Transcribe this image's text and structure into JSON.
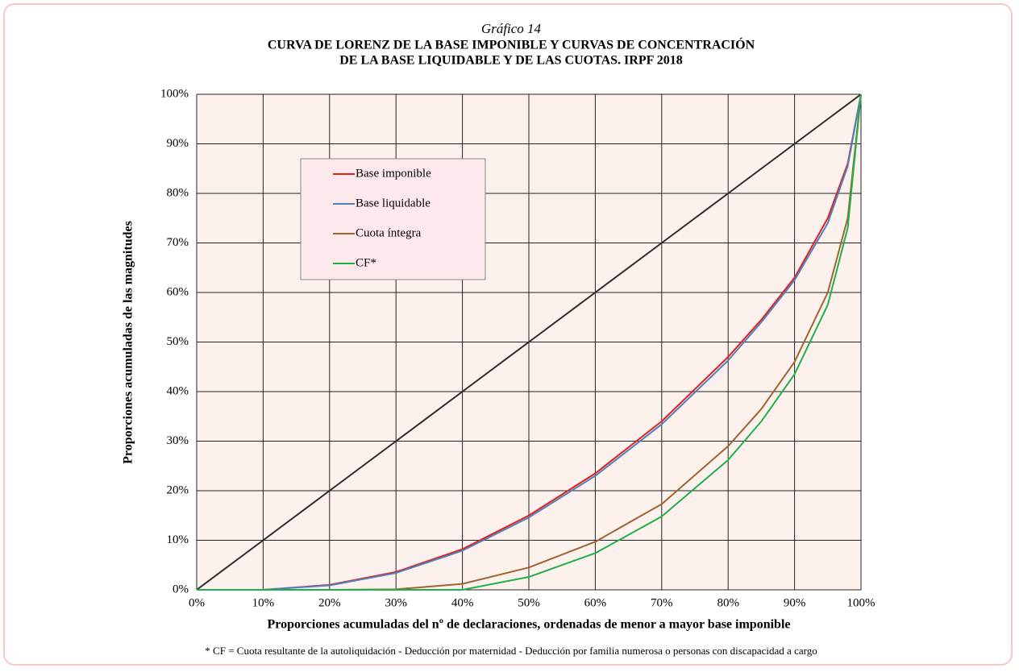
{
  "chart_data": {
    "type": "line",
    "subtitle": "Gráfico 14",
    "title": [
      "CURVA DE LORENZ DE LA BASE IMPONIBLE Y CURVAS DE CONCENTRACIÓN",
      "DE LA BASE LIQUIDABLE Y DE LAS CUOTAS.  IRPF 2018"
    ],
    "xlabel": "Proporciones acumuladas del nº de declaraciones, ordenadas de menor a mayor base imponible",
    "ylabel": "Proporciones acumuladas de las magnitudes",
    "footnote": "* CF = Cuota resultante de la autoliquidación - Deducción por maternidad - Deducción por familia numerosa o personas con discapacidad a cargo",
    "x": [
      0,
      10,
      20,
      30,
      40,
      50,
      60,
      70,
      80,
      85,
      90,
      95,
      98,
      100
    ],
    "series": [
      {
        "color": "#2b2b2b",
        "values": [
          0,
          10,
          20,
          30,
          40,
          50,
          60,
          70,
          80,
          85,
          90,
          95,
          98,
          100
        ]
      },
      {
        "name": "Base imponible",
        "color": "#e0201c",
        "values": [
          0,
          0,
          1.0,
          3.6,
          8.2,
          15.0,
          23.5,
          34,
          47,
          54.5,
          63,
          75,
          86,
          100
        ]
      },
      {
        "name": "Base liquidable",
        "color": "#4f81bd",
        "values": [
          0,
          0,
          0.9,
          3.4,
          7.9,
          14.6,
          23,
          33.4,
          46.3,
          54,
          62.5,
          74,
          85.5,
          100
        ]
      },
      {
        "name": "Cuota íntegra",
        "color": "#a0642d",
        "values": [
          0,
          0,
          0,
          0.1,
          1.2,
          4.5,
          9.7,
          17.3,
          29,
          36.5,
          46,
          60,
          75,
          100
        ]
      },
      {
        "name": "CF*",
        "color": "#1db14b",
        "values": [
          0,
          0,
          0,
          0,
          0,
          2.6,
          7.4,
          14.8,
          26.2,
          34,
          43.5,
          57.5,
          73,
          100
        ]
      }
    ],
    "xlim": [
      0,
      100
    ],
    "ylim": [
      0,
      100
    ],
    "xticks": [
      {
        "value": 0,
        "label": "0%"
      },
      {
        "value": 10,
        "label": "10%"
      },
      {
        "value": 20,
        "label": "20%"
      },
      {
        "value": 30,
        "label": "30%"
      },
      {
        "value": 40,
        "label": "40%"
      },
      {
        "value": 50,
        "label": "50%"
      },
      {
        "value": 60,
        "label": "60%"
      },
      {
        "value": 70,
        "label": "70%"
      },
      {
        "value": 80,
        "label": "80%"
      },
      {
        "value": 90,
        "label": "90%"
      },
      {
        "value": 100,
        "label": "100%"
      }
    ],
    "yticks": [
      {
        "value": 0,
        "label": "0%"
      },
      {
        "value": 10,
        "label": "10%"
      },
      {
        "value": 20,
        "label": "20%"
      },
      {
        "value": 30,
        "label": "30%"
      },
      {
        "value": 40,
        "label": "40%"
      },
      {
        "value": 50,
        "label": "50%"
      },
      {
        "value": 60,
        "label": "60%"
      },
      {
        "value": 70,
        "label": "70%"
      },
      {
        "value": 80,
        "label": "80%"
      },
      {
        "value": 90,
        "label": "90%"
      },
      {
        "value": 100,
        "label": "100%"
      }
    ],
    "grid": true,
    "legend": "upper left"
  }
}
